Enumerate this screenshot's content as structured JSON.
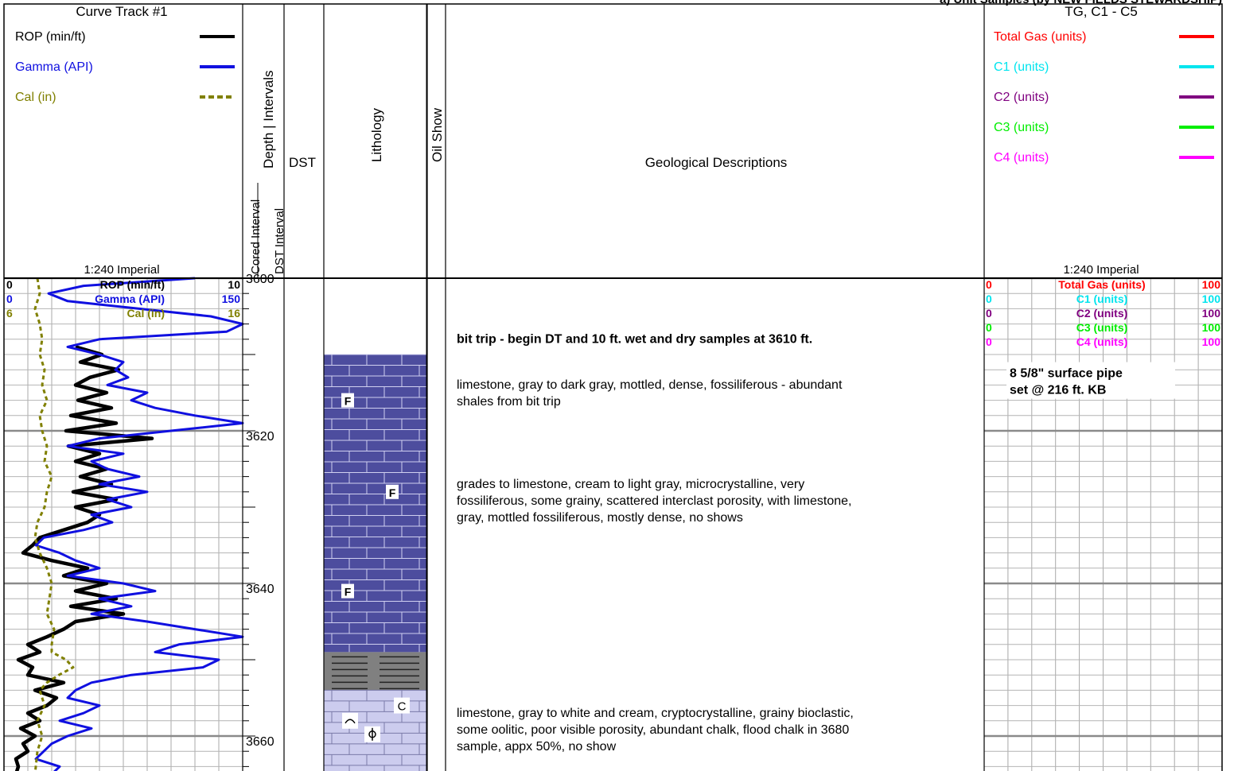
{
  "header": {
    "title_strip": "a) Unit Samples (by NEW FIELDS STEWARDSHIP)",
    "curve_track_title": "Curve Track #1",
    "gas_track_title": "TG, C1 - C5",
    "depth_col_label": "Depth | Intervals",
    "cored_interval_label": "Cored Interval",
    "dst_interval_label": "DST Interval",
    "dst_label": "DST",
    "lithology_label": "Lithology",
    "oil_show_label": "Oil Show",
    "geo_desc_label": "Geological Descriptions",
    "scale_left": "1:240 Imperial",
    "scale_right": "1:240 Imperial"
  },
  "curve_legend": [
    {
      "label": "ROP (min/ft)",
      "color": "#000000",
      "style": "solid"
    },
    {
      "label": "Gamma (API)",
      "color": "#1010e0",
      "style": "solid"
    },
    {
      "label": "Cal (in)",
      "color": "#808000",
      "style": "dashed"
    }
  ],
  "gas_legend": [
    {
      "label": "Total Gas (units)",
      "color": "#ff0000"
    },
    {
      "label": "C1 (units)",
      "color": "#00e5ee"
    },
    {
      "label": "C2 (units)",
      "color": "#800080"
    },
    {
      "label": "C3 (units)",
      "color": "#00ee00"
    },
    {
      "label": "C4 (units)",
      "color": "#ff00ff"
    }
  ],
  "curve_scales": [
    {
      "name": "ROP (min/ft)",
      "min": "0",
      "max": "10",
      "color": "#000000"
    },
    {
      "name": "Gamma (API)",
      "min": "0",
      "max": "150",
      "color": "#1010e0"
    },
    {
      "name": "Cal (in)",
      "min": "6",
      "max": "16",
      "color": "#808000"
    }
  ],
  "gas_scales": [
    {
      "name": "Total Gas (units)",
      "min": "0",
      "max": "100",
      "color": "#ff0000"
    },
    {
      "name": "C1 (units)",
      "min": "0",
      "max": "100",
      "color": "#00e5ee"
    },
    {
      "name": "C2 (units)",
      "min": "0",
      "max": "100",
      "color": "#800080"
    },
    {
      "name": "C3 (units)",
      "min": "0",
      "max": "100",
      "color": "#00ee00"
    },
    {
      "name": "C4 (units)",
      "min": "0",
      "max": "100",
      "color": "#ff00ff"
    }
  ],
  "depth": {
    "start": 3600,
    "end": 3665,
    "labels": [
      "3600",
      "3620",
      "3640",
      "3660"
    ]
  },
  "descriptions": [
    {
      "depth": 3608.5,
      "bold": true,
      "lines": [
        "bit trip  - begin DT and 10 ft. wet and dry samples at 3610 ft."
      ]
    },
    {
      "depth": 3614.5,
      "bold": false,
      "lines": [
        "limestone, gray to dark gray, mottled, dense, fossiliferous - abundant",
        "shales from bit trip"
      ]
    },
    {
      "depth": 3627.5,
      "bold": false,
      "lines": [
        "grades to limestone, cream to light gray, microcrystalline, very",
        "fossiliferous, some grainy, scattered interclast porosity, with limestone,",
        "gray, mottled fossiliferous, mostly dense, no shows"
      ]
    },
    {
      "depth": 3657.5,
      "bold": false,
      "lines": [
        "limestone, gray to white and cream, cryptocrystalline, grainy bioclastic,",
        "some oolitic, poor visible porosity, abundant chalk, flood chalk in 3680",
        "sample, appx 50%, no show"
      ]
    }
  ],
  "annotation": {
    "lines": [
      "8 5/8\" surface pipe",
      "set @ 216 ft. KB"
    ],
    "depth": 3613.5
  },
  "lithology": [
    {
      "type": "limestone-dark",
      "top": 3610,
      "bottom": 3649,
      "color": "#4d4d9e",
      "fossil_marks": [
        {
          "depth": 3616,
          "label": "F"
        },
        {
          "depth": 3628,
          "label": "F"
        },
        {
          "depth": 3641,
          "label": "F"
        }
      ]
    },
    {
      "type": "shale",
      "top": 3649,
      "bottom": 3654,
      "color": "#808080"
    },
    {
      "type": "limestone-chalky",
      "top": 3654,
      "bottom": 3665,
      "color": "#ccccee",
      "marks": [
        {
          "depth": 3656,
          "label": "C"
        }
      ]
    }
  ],
  "chart_data": {
    "type": "line",
    "y_axis": "depth (ft)",
    "ylim": [
      3600,
      3665
    ],
    "series": [
      {
        "name": "ROP (min/ft)",
        "xlim": [
          0,
          10
        ],
        "color": "#000000",
        "points": [
          [
            3609,
            3.0
          ],
          [
            3610,
            4.1
          ],
          [
            3611,
            3.2
          ],
          [
            3612,
            4.8
          ],
          [
            3613,
            3.6
          ],
          [
            3614,
            3.0
          ],
          [
            3615,
            4.3
          ],
          [
            3616,
            3.1
          ],
          [
            3617,
            4.5
          ],
          [
            3618,
            2.8
          ],
          [
            3619,
            4.7
          ],
          [
            3620,
            2.6
          ],
          [
            3621,
            6.2
          ],
          [
            3622,
            2.7
          ],
          [
            3623,
            4.0
          ],
          [
            3624,
            3.0
          ],
          [
            3625,
            4.3
          ],
          [
            3626,
            3.2
          ],
          [
            3627,
            4.5
          ],
          [
            3628,
            2.9
          ],
          [
            3629,
            4.7
          ],
          [
            3630,
            3.0
          ],
          [
            3631,
            4.0
          ],
          [
            3632,
            3.5
          ],
          [
            3633,
            2.5
          ],
          [
            3634,
            1.5
          ],
          [
            3635,
            1.2
          ],
          [
            3636,
            0.8
          ],
          [
            3637,
            2.0
          ],
          [
            3638,
            3.5
          ],
          [
            3639,
            2.5
          ],
          [
            3640,
            4.3
          ],
          [
            3641,
            3.0
          ],
          [
            3642,
            4.7
          ],
          [
            3643,
            2.8
          ],
          [
            3644,
            5.0
          ],
          [
            3645,
            3.0
          ],
          [
            3646,
            2.5
          ],
          [
            3647,
            1.8
          ],
          [
            3648,
            1.0
          ],
          [
            3649,
            1.5
          ],
          [
            3650,
            0.6
          ],
          [
            3651,
            1.2
          ],
          [
            3652,
            1.0
          ],
          [
            3653,
            2.5
          ],
          [
            3654,
            1.3
          ],
          [
            3655,
            2.2
          ],
          [
            3656,
            1.8
          ],
          [
            3657,
            1.0
          ],
          [
            3658,
            1.5
          ],
          [
            3659,
            0.7
          ],
          [
            3660,
            1.3
          ],
          [
            3661,
            0.8
          ],
          [
            3662,
            1.0
          ],
          [
            3663,
            0.5
          ],
          [
            3664,
            0.6
          ],
          [
            3665,
            0.5
          ]
        ]
      },
      {
        "name": "Gamma (API)",
        "xlim": [
          0,
          150
        ],
        "color": "#1010e0",
        "points": [
          [
            3600,
            120
          ],
          [
            3601,
            50
          ],
          [
            3602,
            28
          ],
          [
            3603,
            40
          ],
          [
            3604,
            85
          ],
          [
            3605,
            130
          ],
          [
            3606,
            150
          ],
          [
            3607,
            140
          ],
          [
            3608,
            60
          ],
          [
            3609,
            40
          ],
          [
            3610,
            60
          ],
          [
            3611,
            75
          ],
          [
            3612,
            70
          ],
          [
            3613,
            78
          ],
          [
            3614,
            65
          ],
          [
            3615,
            90
          ],
          [
            3616,
            80
          ],
          [
            3617,
            95
          ],
          [
            3618,
            120
          ],
          [
            3619,
            150
          ],
          [
            3620,
            105
          ],
          [
            3621,
            60
          ],
          [
            3622,
            40
          ],
          [
            3623,
            75
          ],
          [
            3624,
            55
          ],
          [
            3625,
            65
          ],
          [
            3626,
            85
          ],
          [
            3627,
            60
          ],
          [
            3628,
            90
          ],
          [
            3629,
            65
          ],
          [
            3630,
            80
          ],
          [
            3631,
            55
          ],
          [
            3632,
            68
          ],
          [
            3633,
            50
          ],
          [
            3634,
            25
          ],
          [
            3635,
            20
          ],
          [
            3636,
            35
          ],
          [
            3637,
            45
          ],
          [
            3638,
            60
          ],
          [
            3639,
            40
          ],
          [
            3640,
            75
          ],
          [
            3641,
            95
          ],
          [
            3642,
            60
          ],
          [
            3643,
            80
          ],
          [
            3644,
            55
          ],
          [
            3645,
            90
          ],
          [
            3646,
            120
          ],
          [
            3647,
            150
          ],
          [
            3648,
            110
          ],
          [
            3649,
            95
          ],
          [
            3650,
            135
          ],
          [
            3651,
            125
          ],
          [
            3652,
            80
          ],
          [
            3653,
            55
          ],
          [
            3654,
            45
          ],
          [
            3655,
            40
          ],
          [
            3656,
            60
          ],
          [
            3657,
            50
          ],
          [
            3658,
            35
          ],
          [
            3659,
            55
          ],
          [
            3660,
            40
          ],
          [
            3661,
            30
          ],
          [
            3662,
            25
          ],
          [
            3663,
            20
          ],
          [
            3664,
            35
          ],
          [
            3665,
            30
          ]
        ]
      },
      {
        "name": "Cal (in)",
        "xlim": [
          6,
          16
        ],
        "color": "#808000",
        "points": [
          [
            3600,
            7.4
          ],
          [
            3602,
            7.5
          ],
          [
            3604,
            7.3
          ],
          [
            3606,
            7.5
          ],
          [
            3608,
            7.6
          ],
          [
            3610,
            7.5
          ],
          [
            3612,
            7.7
          ],
          [
            3614,
            7.6
          ],
          [
            3616,
            7.8
          ],
          [
            3618,
            7.5
          ],
          [
            3620,
            7.6
          ],
          [
            3622,
            7.8
          ],
          [
            3624,
            7.7
          ],
          [
            3626,
            8.0
          ],
          [
            3628,
            7.8
          ],
          [
            3630,
            7.7
          ],
          [
            3632,
            7.4
          ],
          [
            3634,
            7.3
          ],
          [
            3636,
            7.5
          ],
          [
            3638,
            7.8
          ],
          [
            3640,
            8.0
          ],
          [
            3642,
            7.9
          ],
          [
            3644,
            7.8
          ],
          [
            3646,
            8.1
          ],
          [
            3648,
            8.0
          ],
          [
            3649,
            8.0
          ],
          [
            3650,
            8.6
          ],
          [
            3651,
            8.9
          ],
          [
            3652,
            8.3
          ],
          [
            3653,
            7.8
          ],
          [
            3654,
            7.5
          ],
          [
            3656,
            7.7
          ],
          [
            3658,
            7.4
          ],
          [
            3660,
            7.6
          ],
          [
            3662,
            7.4
          ],
          [
            3665,
            7.3
          ]
        ]
      }
    ]
  }
}
